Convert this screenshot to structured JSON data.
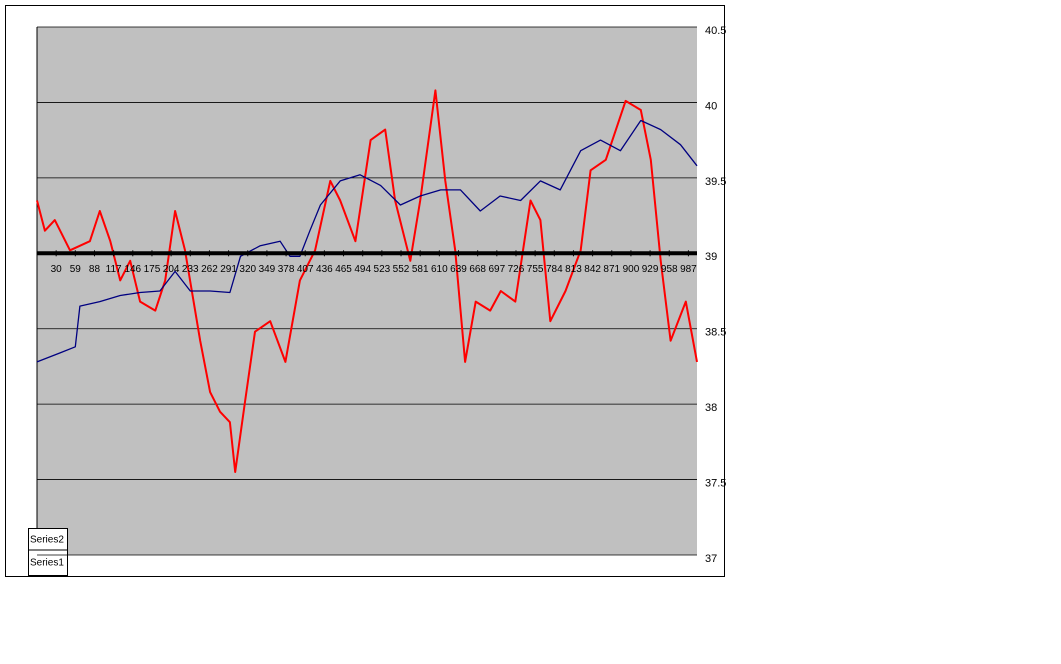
{
  "chart_data": {
    "type": "line",
    "xlim": [
      1,
      1000
    ],
    "xticks": [
      30,
      59,
      88,
      117,
      146,
      175,
      204,
      233,
      262,
      291,
      320,
      349,
      378,
      407,
      436,
      465,
      494,
      523,
      552,
      581,
      610,
      639,
      668,
      697,
      726,
      755,
      784,
      813,
      842,
      871,
      900,
      929,
      958,
      987
    ],
    "ylim": [
      37,
      40.5
    ],
    "yticks": [
      37,
      37.5,
      38,
      38.5,
      39,
      39.5,
      40,
      40.5
    ],
    "x_axis_at": 39,
    "grid": true,
    "legend": "bottom-left",
    "series": [
      {
        "name": "Series2",
        "color": "#ff0000",
        "x": [
          1,
          13,
          28,
          51,
          81,
          96,
          112,
          127,
          142,
          157,
          180,
          195,
          210,
          225,
          248,
          263,
          278,
          293,
          301,
          316,
          331,
          354,
          377,
          399,
          422,
          445,
          460,
          483,
          506,
          528,
          543,
          566,
          581,
          604,
          619,
          634,
          649,
          665,
          687,
          703,
          725,
          748,
          763,
          778,
          801,
          824,
          839,
          862,
          892,
          915,
          930,
          945,
          960,
          983,
          1000
        ],
        "values": [
          39.35,
          39.15,
          39.22,
          39.02,
          39.08,
          39.28,
          39.08,
          38.82,
          38.95,
          38.68,
          38.62,
          38.82,
          39.28,
          39.02,
          38.42,
          38.08,
          37.95,
          37.88,
          37.55,
          38.02,
          38.48,
          38.55,
          38.28,
          38.82,
          39.02,
          39.48,
          39.35,
          39.08,
          39.75,
          39.82,
          39.35,
          38.95,
          39.35,
          40.08,
          39.48,
          39.02,
          38.28,
          38.68,
          38.62,
          38.75,
          38.68,
          39.35,
          39.22,
          38.55,
          38.75,
          39.02,
          39.55,
          39.62,
          40.01,
          39.95,
          39.62,
          38.95,
          38.42,
          38.68,
          38.28
        ]
      },
      {
        "name": "Series1",
        "color": "#000080",
        "x": [
          1,
          36,
          59,
          66,
          96,
          127,
          157,
          187,
          210,
          233,
          263,
          293,
          309,
          339,
          369,
          384,
          399,
          414,
          430,
          460,
          490,
          521,
          551,
          581,
          612,
          642,
          672,
          702,
          733,
          763,
          793,
          824,
          854,
          884,
          915,
          945,
          975,
          1000
        ],
        "values": [
          38.28,
          38.34,
          38.38,
          38.65,
          38.68,
          38.72,
          38.74,
          38.75,
          38.88,
          38.75,
          38.75,
          38.74,
          38.98,
          39.05,
          39.08,
          38.98,
          38.98,
          39.15,
          39.32,
          39.48,
          39.52,
          39.45,
          39.32,
          39.38,
          39.42,
          39.42,
          39.28,
          39.38,
          39.35,
          39.48,
          39.42,
          39.68,
          39.75,
          39.68,
          39.88,
          39.82,
          39.72,
          39.58
        ]
      }
    ]
  }
}
